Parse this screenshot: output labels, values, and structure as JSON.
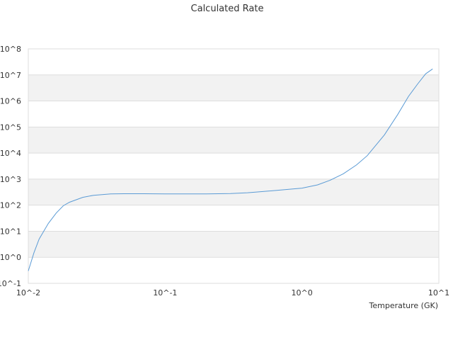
{
  "chart_data": {
    "type": "line",
    "title": "Calculated Rate",
    "xlabel": "Temperature (GK)",
    "ylabel": "",
    "x_scale": "log",
    "y_scale": "log",
    "xlim": [
      0.01,
      10
    ],
    "ylim": [
      0.1,
      100000000
    ],
    "x_ticks": [
      "10^-2",
      "10^-1",
      "10^0",
      "10^1"
    ],
    "y_ticks": [
      "10^-1",
      "10^0",
      "10^1",
      "10^2",
      "10^3",
      "10^4",
      "10^5",
      "10^6",
      "10^7",
      "10^8"
    ],
    "grid": "alternating horizontal bands",
    "legend": "none",
    "colors": {
      "line": "#5b9bd5",
      "band": "#f2f2f2",
      "gridline": "#dddddd",
      "text": "#333333"
    },
    "series": [
      {
        "x": [
          0.01,
          0.011,
          0.012,
          0.014,
          0.016,
          0.018,
          0.02,
          0.025,
          0.03,
          0.04,
          0.05,
          0.07,
          0.1,
          0.15,
          0.2,
          0.3,
          0.4,
          0.5,
          0.7,
          1.0,
          1.3,
          1.6,
          2.0,
          2.5,
          3.0,
          4.0,
          5.0,
          6.0,
          7.0,
          8.0,
          9.0
        ],
        "y": [
          0.3,
          1.5,
          5,
          20,
          50,
          95,
          130,
          200,
          240,
          270,
          275,
          275,
          270,
          270,
          270,
          280,
          300,
          330,
          380,
          450,
          600,
          900,
          1600,
          3500,
          8000,
          50000,
          300000,
          1500000,
          4500000,
          11000000,
          17000000
        ]
      }
    ]
  }
}
